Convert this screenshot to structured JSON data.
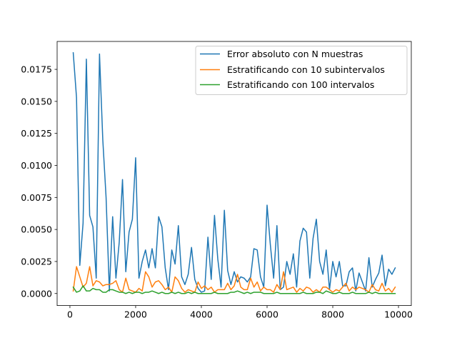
{
  "chart_data": {
    "type": "line",
    "title": "",
    "xlabel": "",
    "ylabel": "",
    "xlim": [
      -390,
      10390
    ],
    "ylim": [
      -0.00094,
      0.01968
    ],
    "xticks": [
      0,
      2000,
      4000,
      6000,
      8000,
      10000
    ],
    "xtick_labels": [
      "0",
      "2000",
      "4000",
      "6000",
      "8000",
      "10000"
    ],
    "yticks": [
      0.0,
      0.0025,
      0.005,
      0.0075,
      0.01,
      0.0125,
      0.015,
      0.0175
    ],
    "ytick_labels": [
      "0.0000",
      "0.0025",
      "0.0050",
      "0.0075",
      "0.0100",
      "0.0125",
      "0.0150",
      "0.0175"
    ],
    "grid": false,
    "legend_position": "top-right",
    "x": [
      100,
      200,
      300,
      400,
      500,
      600,
      700,
      800,
      900,
      1000,
      1100,
      1200,
      1300,
      1400,
      1500,
      1600,
      1700,
      1800,
      1900,
      2000,
      2100,
      2200,
      2300,
      2400,
      2500,
      2600,
      2700,
      2800,
      2900,
      3000,
      3100,
      3200,
      3300,
      3400,
      3500,
      3600,
      3700,
      3800,
      3900,
      4000,
      4100,
      4200,
      4300,
      4400,
      4500,
      4600,
      4700,
      4800,
      4900,
      5000,
      5100,
      5200,
      5300,
      5400,
      5500,
      5600,
      5700,
      5800,
      5900,
      6000,
      6100,
      6200,
      6300,
      6400,
      6500,
      6600,
      6700,
      6800,
      6900,
      7000,
      7100,
      7200,
      7300,
      7400,
      7500,
      7600,
      7700,
      7800,
      7900,
      8000,
      8100,
      8200,
      8300,
      8400,
      8500,
      8600,
      8700,
      8800,
      8900,
      9000,
      9100,
      9200,
      9300,
      9400,
      9500,
      9600,
      9700,
      9800,
      9900
    ],
    "series": [
      {
        "name": "Error absoluto con N muestras",
        "color": "#1f77b4",
        "values": [
          0.0188,
          0.0153,
          0.0022,
          0.0055,
          0.0183,
          0.0061,
          0.0052,
          0.0012,
          0.0187,
          0.012,
          0.0075,
          0.0002,
          0.006,
          0.0012,
          0.004,
          0.0089,
          0.0017,
          0.0048,
          0.0058,
          0.0106,
          0.0012,
          0.0025,
          0.0034,
          0.002,
          0.0035,
          0.002,
          0.006,
          0.0052,
          0.002,
          0.0003,
          0.0034,
          0.0023,
          0.0053,
          0.0013,
          0.0007,
          0.0015,
          0.0036,
          0.0011,
          0.0004,
          0.0001,
          0.0002,
          0.0044,
          0.0011,
          0.0061,
          0.0027,
          0.0005,
          0.0065,
          0.0018,
          0.0007,
          0.0017,
          0.0009,
          0.0013,
          0.0012,
          0.0009,
          0.0013,
          0.0035,
          0.0034,
          0.0013,
          0.0005,
          0.0069,
          0.0038,
          0.0012,
          0.0053,
          0.0003,
          0.0005,
          0.0025,
          0.0015,
          0.0031,
          0.0005,
          0.0041,
          0.0051,
          0.0048,
          0.0012,
          0.0043,
          0.0058,
          0.0025,
          0.0015,
          0.0034,
          0.0003,
          0.0025,
          0.0013,
          0.0025,
          0.0006,
          0.0006,
          0.0017,
          0.002,
          0.0002,
          0.0016,
          0.0009,
          0.0002,
          0.0028,
          0.0005,
          0.0011,
          0.0016,
          0.003,
          0.0006,
          0.0019,
          0.0015,
          0.002
        ]
      },
      {
        "name": "Estratificando con 10 subintervalos",
        "color": "#ff7f0e",
        "values": [
          0.0002,
          0.0021,
          0.0013,
          0.0005,
          0.0008,
          0.0021,
          0.0006,
          0.001,
          0.0009,
          0.0006,
          0.0007,
          0.0007,
          0.0008,
          0.001,
          0.0003,
          0.0001,
          0.0012,
          0.0003,
          0.0002,
          0.0001,
          0.0004,
          0.0002,
          0.0017,
          0.0013,
          0.0005,
          0.0009,
          0.001,
          0.0007,
          0.0003,
          0.0005,
          0.0001,
          0.0013,
          0.001,
          0.0004,
          0.0001,
          0.0003,
          0.0002,
          0.0001,
          0.0009,
          0.0004,
          0.0006,
          0.0003,
          0.0005,
          0.0001,
          0.0003,
          0.0003,
          0.0003,
          0.0008,
          0.0003,
          0.0006,
          0.0015,
          0.0005,
          0.0003,
          0.0003,
          0.0012,
          0.0005,
          0.0009,
          0.0002,
          0.0005,
          0.0003,
          0.0003,
          0.0001,
          0.0007,
          0.0003,
          0.0017,
          0.0003,
          0.0004,
          0.0005,
          0.0001,
          0.0004,
          0.0002,
          0.0005,
          0.0004,
          0.0001,
          0.0003,
          0.0001,
          0.0005,
          0.0005,
          0.0003,
          0.0001,
          0.0003,
          0.0002,
          0.0005,
          0.0008,
          0.0002,
          0.0005,
          0.0003,
          0.0005,
          0.0004,
          0.0003,
          0.0001,
          0.0007,
          0.0003,
          0.0002,
          0.0008,
          0.0002,
          0.0004,
          0.0001,
          0.0005
        ]
      },
      {
        "name": "Estratificando con 100 intervalos",
        "color": "#2ca02c",
        "values": [
          0.0005,
          0.0001,
          0.0002,
          0.0006,
          0.0002,
          0.0002,
          0.0004,
          0.0003,
          0.0003,
          0.0001,
          0.0001,
          0.0003,
          0.0003,
          0.0002,
          0.0001,
          0.0001,
          0.0,
          0.0001,
          0.0,
          0.0001,
          0.0001,
          0.0,
          0.0001,
          0.0001,
          0.0002,
          0.0001,
          0.0,
          0.0001,
          0.0,
          0.0,
          0.0001,
          0.0,
          0.0001,
          0.0,
          0.0,
          0.0001,
          0.0,
          0.0001,
          0.0,
          0.0,
          0.0,
          0.0,
          0.0,
          0.0001,
          0.0,
          0.0,
          0.0,
          0.0,
          0.0001,
          0.0001,
          0.0002,
          0.0001,
          0.0,
          0.0001,
          0.0,
          0.0001,
          0.0001,
          0.0001,
          0.0,
          0.0,
          0.0,
          0.0,
          0.0001,
          0.0,
          0.0,
          0.0,
          0.0,
          0.0,
          0.0,
          0.0,
          0.0001,
          0.0,
          0.0,
          0.0,
          0.0001,
          0.0001,
          0.0,
          0.0002,
          0.0001,
          0.0,
          0.0,
          0.0001,
          0.0,
          0.0,
          0.0,
          0.0001,
          0.0,
          0.0,
          0.0,
          0.0,
          0.0001,
          0.0,
          0.0001,
          0.0,
          0.0,
          0.0,
          0.0,
          0.0,
          0.0
        ]
      }
    ]
  }
}
